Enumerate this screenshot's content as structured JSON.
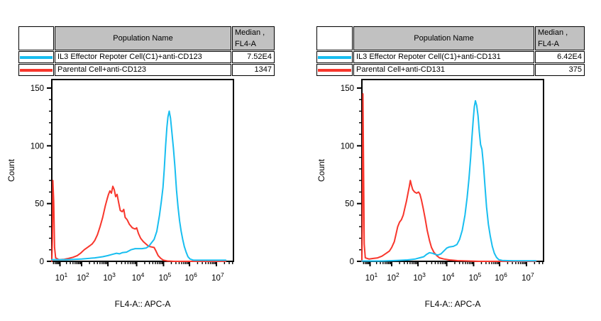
{
  "legend_header": {
    "population": "Population Name",
    "median_line1": "Median ,",
    "median_line2": "FL4-A"
  },
  "colors": {
    "cyan": "#18BEF0",
    "red": "#F8362C",
    "header_bg": "#C1C1C1",
    "axis": "#000000",
    "background": "#FFFFFF"
  },
  "chart_data": [
    {
      "type": "line",
      "subtype": "flow-cytometry-histogram",
      "xlabel": "FL4-A:: APC-A",
      "ylabel": "Count",
      "x_scale": "log10",
      "x_tick_exponents": [
        1,
        2,
        3,
        4,
        5,
        6,
        7
      ],
      "y_ticks": [
        0,
        50,
        100,
        150
      ],
      "y_minor_step": 10,
      "ylim": [
        0,
        150
      ],
      "xlim_decades": [
        0.62,
        7.35
      ],
      "grid": false,
      "legend_position": "table-above",
      "series": [
        {
          "name": "IL3 Effector Repoter Cell(C1)+anti-CD123",
          "median": "7.52E4",
          "color": "#18BEF0",
          "points": [
            [
              0.62,
              1.5
            ],
            [
              1.3,
              1.5
            ],
            [
              2.0,
              2
            ],
            [
              2.5,
              3
            ],
            [
              2.8,
              4
            ],
            [
              3.0,
              5
            ],
            [
              3.15,
              6
            ],
            [
              3.3,
              7
            ],
            [
              3.4,
              6.5
            ],
            [
              3.5,
              7.5
            ],
            [
              3.65,
              8
            ],
            [
              3.8,
              10
            ],
            [
              3.95,
              11
            ],
            [
              4.2,
              11
            ],
            [
              4.35,
              11.5
            ],
            [
              4.45,
              13
            ],
            [
              4.55,
              16
            ],
            [
              4.65,
              19
            ],
            [
              4.75,
              26
            ],
            [
              4.85,
              40
            ],
            [
              4.92,
              52
            ],
            [
              4.98,
              64
            ],
            [
              5.03,
              80
            ],
            [
              5.08,
              100
            ],
            [
              5.13,
              116
            ],
            [
              5.17,
              125
            ],
            [
              5.22,
              130
            ],
            [
              5.27,
              124
            ],
            [
              5.32,
              112
            ],
            [
              5.38,
              98
            ],
            [
              5.44,
              82
            ],
            [
              5.5,
              62
            ],
            [
              5.56,
              47
            ],
            [
              5.62,
              35
            ],
            [
              5.68,
              26
            ],
            [
              5.74,
              19
            ],
            [
              5.8,
              13
            ],
            [
              5.87,
              8
            ],
            [
              5.94,
              4
            ],
            [
              6.02,
              2
            ],
            [
              6.15,
              1
            ],
            [
              6.5,
              1
            ],
            [
              7.35,
              1
            ]
          ]
        },
        {
          "name": "Parental Cell+anti-CD123",
          "median": "1347",
          "color": "#F8362C",
          "points": [
            [
              0.62,
              0
            ],
            [
              0.65,
              20
            ],
            [
              0.67,
              70
            ],
            [
              0.71,
              52
            ],
            [
              0.75,
              12
            ],
            [
              0.8,
              3
            ],
            [
              0.95,
              1.5
            ],
            [
              1.2,
              1.8
            ],
            [
              1.4,
              2.5
            ],
            [
              1.6,
              3.5
            ],
            [
              1.8,
              5
            ],
            [
              1.95,
              7
            ],
            [
              2.1,
              10
            ],
            [
              2.25,
              12.5
            ],
            [
              2.4,
              15
            ],
            [
              2.5,
              18
            ],
            [
              2.6,
              23
            ],
            [
              2.7,
              30
            ],
            [
              2.8,
              38
            ],
            [
              2.9,
              48
            ],
            [
              2.97,
              54
            ],
            [
              3.02,
              58
            ],
            [
              3.07,
              61
            ],
            [
              3.12,
              59
            ],
            [
              3.17,
              65
            ],
            [
              3.22,
              62
            ],
            [
              3.27,
              56
            ],
            [
              3.32,
              58
            ],
            [
              3.38,
              50
            ],
            [
              3.43,
              44
            ],
            [
              3.5,
              43
            ],
            [
              3.55,
              45
            ],
            [
              3.6,
              38
            ],
            [
              3.67,
              36
            ],
            [
              3.75,
              32
            ],
            [
              3.85,
              29
            ],
            [
              3.95,
              28
            ],
            [
              4.0,
              29
            ],
            [
              4.07,
              24
            ],
            [
              4.15,
              20
            ],
            [
              4.25,
              17
            ],
            [
              4.35,
              15
            ],
            [
              4.45,
              13
            ],
            [
              4.55,
              12.5
            ],
            [
              4.65,
              12
            ],
            [
              4.72,
              9
            ],
            [
              4.8,
              5
            ],
            [
              4.9,
              2.5
            ],
            [
              5.0,
              1
            ],
            [
              5.15,
              0.3
            ],
            [
              5.4,
              0
            ],
            [
              7.35,
              0
            ]
          ]
        }
      ]
    },
    {
      "type": "line",
      "subtype": "flow-cytometry-histogram",
      "xlabel": "FL4-A:: APC-A",
      "ylabel": "Count",
      "x_scale": "log10",
      "x_tick_exponents": [
        1,
        2,
        3,
        4,
        5,
        6,
        7
      ],
      "y_ticks": [
        0,
        50,
        100,
        150
      ],
      "y_minor_step": 10,
      "ylim": [
        0,
        150
      ],
      "xlim_decades": [
        0.62,
        7.35
      ],
      "grid": false,
      "legend_position": "table-above",
      "series": [
        {
          "name": "IL3 Effector Repoter Cell(C1)+anti-CD131",
          "median": "6.42E4",
          "color": "#18BEF0",
          "points": [
            [
              0.62,
              0.3
            ],
            [
              1.6,
              0.3
            ],
            [
              2.2,
              0.8
            ],
            [
              2.6,
              1.2
            ],
            [
              2.9,
              2
            ],
            [
              3.05,
              3
            ],
            [
              3.2,
              4
            ],
            [
              3.3,
              6
            ],
            [
              3.4,
              7.5
            ],
            [
              3.5,
              7
            ],
            [
              3.6,
              6
            ],
            [
              3.7,
              5.5
            ],
            [
              3.8,
              6.5
            ],
            [
              3.9,
              9
            ],
            [
              4.0,
              11.5
            ],
            [
              4.1,
              12.5
            ],
            [
              4.25,
              13
            ],
            [
              4.38,
              14.5
            ],
            [
              4.48,
              19
            ],
            [
              4.58,
              27
            ],
            [
              4.68,
              40
            ],
            [
              4.76,
              55
            ],
            [
              4.83,
              72
            ],
            [
              4.89,
              90
            ],
            [
              4.94,
              108
            ],
            [
              4.99,
              124
            ],
            [
              5.03,
              134
            ],
            [
              5.07,
              139
            ],
            [
              5.12,
              135
            ],
            [
              5.17,
              126
            ],
            [
              5.22,
              112
            ],
            [
              5.27,
              101
            ],
            [
              5.32,
              97
            ],
            [
              5.38,
              83
            ],
            [
              5.44,
              65
            ],
            [
              5.5,
              47
            ],
            [
              5.57,
              32
            ],
            [
              5.64,
              22
            ],
            [
              5.72,
              13
            ],
            [
              5.8,
              7
            ],
            [
              5.88,
              3.5
            ],
            [
              5.97,
              1.5
            ],
            [
              6.1,
              0.8
            ],
            [
              6.5,
              0.5
            ],
            [
              7.35,
              0.5
            ]
          ]
        },
        {
          "name": "Parental Cell+anti-CD131",
          "median": "375",
          "color": "#F8362C",
          "points": [
            [
              0.62,
              0
            ],
            [
              0.64,
              30
            ],
            [
              0.67,
              145
            ],
            [
              0.7,
              80
            ],
            [
              0.73,
              15
            ],
            [
              0.78,
              3
            ],
            [
              0.95,
              2
            ],
            [
              1.15,
              2.5
            ],
            [
              1.35,
              3
            ],
            [
              1.55,
              4.5
            ],
            [
              1.75,
              7
            ],
            [
              1.9,
              9
            ],
            [
              2.0,
              12
            ],
            [
              2.1,
              17
            ],
            [
              2.17,
              24
            ],
            [
              2.23,
              30
            ],
            [
              2.3,
              34
            ],
            [
              2.37,
              36
            ],
            [
              2.44,
              40
            ],
            [
              2.5,
              46
            ],
            [
              2.56,
              52
            ],
            [
              2.62,
              59
            ],
            [
              2.67,
              65
            ],
            [
              2.71,
              70
            ],
            [
              2.75,
              66
            ],
            [
              2.8,
              62
            ],
            [
              2.87,
              60
            ],
            [
              2.95,
              59
            ],
            [
              3.02,
              60
            ],
            [
              3.07,
              58
            ],
            [
              3.12,
              53
            ],
            [
              3.18,
              46
            ],
            [
              3.25,
              37
            ],
            [
              3.32,
              27
            ],
            [
              3.4,
              18
            ],
            [
              3.47,
              12
            ],
            [
              3.55,
              8
            ],
            [
              3.65,
              5
            ],
            [
              3.75,
              3
            ],
            [
              3.9,
              2
            ],
            [
              4.1,
              1.2
            ],
            [
              4.4,
              0.6
            ],
            [
              4.8,
              0.3
            ],
            [
              5.2,
              0
            ],
            [
              7.35,
              0
            ]
          ]
        }
      ]
    }
  ]
}
